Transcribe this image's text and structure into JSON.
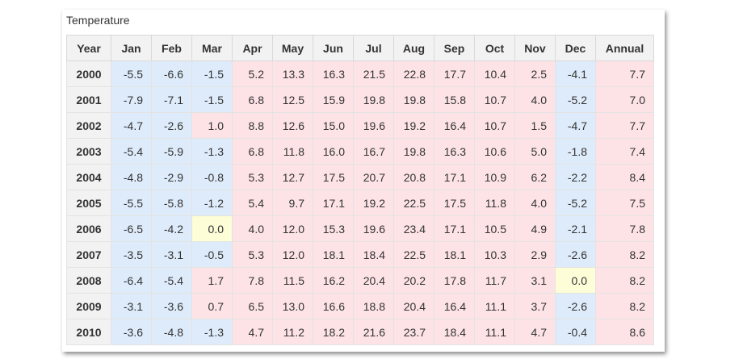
{
  "caption": "Temperature",
  "columns": [
    "Year",
    "Jan",
    "Feb",
    "Mar",
    "Apr",
    "May",
    "Jun",
    "Jul",
    "Aug",
    "Sep",
    "Oct",
    "Nov",
    "Dec",
    "Annual"
  ],
  "rows": [
    [
      "2000",
      "-5.5",
      "-6.6",
      "-1.5",
      "5.2",
      "13.3",
      "16.3",
      "21.5",
      "22.8",
      "17.7",
      "10.4",
      "2.5",
      "-4.1",
      "7.7"
    ],
    [
      "2001",
      "-7.9",
      "-7.1",
      "-1.5",
      "6.8",
      "12.5",
      "15.9",
      "19.8",
      "19.8",
      "15.8",
      "10.7",
      "4.0",
      "-5.2",
      "7.0"
    ],
    [
      "2002",
      "-4.7",
      "-2.6",
      "1.0",
      "8.8",
      "12.6",
      "15.0",
      "19.6",
      "19.2",
      "16.4",
      "10.7",
      "1.5",
      "-4.7",
      "7.7"
    ],
    [
      "2003",
      "-5.4",
      "-5.9",
      "-1.3",
      "6.8",
      "11.8",
      "16.0",
      "16.7",
      "19.8",
      "16.3",
      "10.6",
      "5.0",
      "-1.8",
      "7.4"
    ],
    [
      "2004",
      "-4.8",
      "-2.9",
      "-0.8",
      "5.3",
      "12.7",
      "17.5",
      "20.7",
      "20.8",
      "17.1",
      "10.9",
      "6.2",
      "-2.2",
      "8.4"
    ],
    [
      "2005",
      "-5.5",
      "-5.8",
      "-1.2",
      "5.4",
      "9.7",
      "17.1",
      "19.2",
      "22.5",
      "17.5",
      "11.8",
      "4.0",
      "-5.2",
      "7.5"
    ],
    [
      "2006",
      "-6.5",
      "-4.2",
      "0.0",
      "4.0",
      "12.0",
      "15.3",
      "19.6",
      "23.4",
      "17.1",
      "10.5",
      "4.9",
      "-2.1",
      "7.8"
    ],
    [
      "2007",
      "-3.5",
      "-3.1",
      "-0.5",
      "5.3",
      "12.0",
      "18.1",
      "18.4",
      "22.5",
      "18.1",
      "10.3",
      "2.9",
      "-2.6",
      "8.2"
    ],
    [
      "2008",
      "-6.4",
      "-5.4",
      "1.7",
      "7.8",
      "11.5",
      "16.2",
      "20.4",
      "20.2",
      "17.8",
      "11.7",
      "3.1",
      "0.0",
      "8.2"
    ],
    [
      "2009",
      "-3.1",
      "-3.6",
      "0.7",
      "6.5",
      "13.0",
      "16.6",
      "18.8",
      "20.4",
      "16.4",
      "11.1",
      "3.7",
      "-2.6",
      "8.2"
    ],
    [
      "2010",
      "-3.6",
      "-4.8",
      "-1.3",
      "4.7",
      "11.2",
      "18.2",
      "21.6",
      "23.7",
      "18.4",
      "11.1",
      "4.7",
      "-0.4",
      "8.6"
    ]
  ],
  "colors": {
    "cold": "#deebfa",
    "warm": "#fde3e6",
    "zero": "#fdfdd8",
    "header": "#f2f2f2"
  }
}
